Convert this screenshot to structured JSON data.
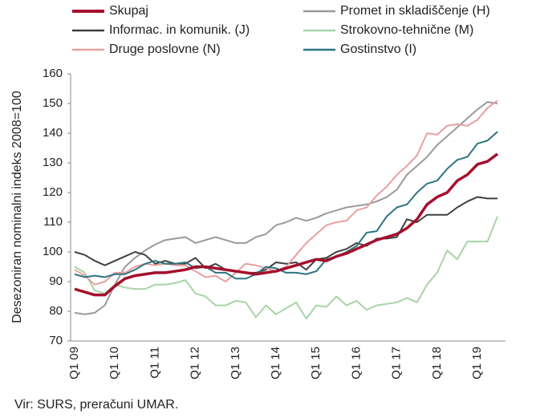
{
  "chart_data": {
    "type": "line",
    "y_label": "Desezoniran nominalni indeks 2008=100",
    "source": "Vir: SURS, preračuni UMAR.",
    "categories": [
      "Q1 09",
      null,
      null,
      null,
      "Q1 10",
      null,
      null,
      null,
      "Q1 11",
      null,
      null,
      null,
      "Q1 12",
      null,
      null,
      null,
      "Q1 13",
      null,
      null,
      null,
      "Q1 14",
      null,
      null,
      null,
      "Q1 15",
      null,
      null,
      null,
      "Q1 16",
      null,
      null,
      null,
      "Q1 17",
      null,
      null,
      null,
      "Q1 18",
      null,
      null,
      null,
      "Q1 19",
      null,
      null
    ],
    "ylim": [
      70,
      160
    ],
    "yticks": [
      70,
      80,
      90,
      100,
      110,
      120,
      130,
      140,
      150,
      160
    ],
    "series": [
      {
        "name": "Skupaj",
        "color": "#a50f2d",
        "values": [
          87.5,
          86.5,
          85.5,
          85.5,
          88.5,
          91,
          92,
          92.5,
          93,
          93,
          93.5,
          94,
          95,
          95,
          94.5,
          94,
          93.5,
          93,
          92.5,
          93,
          93.5,
          94.5,
          95.5,
          96.5,
          97.5,
          97,
          98.5,
          99.5,
          101,
          102.5,
          104,
          105,
          106,
          108,
          111,
          116,
          118.5,
          120,
          124,
          126,
          129.5,
          130.5,
          133
        ]
      },
      {
        "name": "Promet in skladiščenje (H)",
        "color": "#9a9a9a",
        "values": [
          79.5,
          79,
          79.5,
          82,
          89,
          95,
          98,
          100.5,
          102.5,
          104,
          104.5,
          105,
          103,
          104,
          105,
          104,
          103,
          103,
          105,
          106,
          109,
          110,
          111.5,
          110.5,
          111.5,
          113,
          114,
          115,
          115.5,
          116,
          117,
          118.5,
          121,
          126,
          129,
          132,
          136,
          139,
          142,
          145,
          148,
          150.5,
          150
        ]
      },
      {
        "name": "Informac. in komunik. (J)",
        "color": "#404040",
        "values": [
          100,
          99,
          97,
          95.5,
          97,
          98.5,
          100,
          99,
          96,
          97,
          96,
          96,
          98,
          94.5,
          96,
          94,
          93.5,
          93,
          93,
          94,
          96.5,
          96,
          96.5,
          94,
          97.5,
          98,
          100,
          101,
          103,
          102,
          104.5,
          104.5,
          105,
          111,
          110,
          112.5,
          112.5,
          112.5,
          115,
          117,
          118.5,
          118,
          118
        ]
      },
      {
        "name": "Strokovno-tehnične (M)",
        "color": "#a8d4a8",
        "values": [
          95,
          93,
          87,
          86,
          89,
          88,
          87.5,
          87.5,
          89,
          89,
          89.5,
          90.5,
          86,
          85,
          82,
          82,
          83.5,
          83,
          78,
          82,
          79,
          81,
          83,
          77.5,
          82,
          81.5,
          85,
          82,
          83.5,
          80.5,
          82,
          82.5,
          83,
          84.5,
          83,
          89,
          93,
          100.5,
          97.5,
          103.5,
          103.5,
          103.5,
          112
        ]
      },
      {
        "name": "Druge poslovne (N)",
        "color": "#e8a0a0",
        "values": [
          94,
          92,
          89,
          90,
          93,
          93,
          95,
          96,
          95.5,
          96,
          95.5,
          95.5,
          93.5,
          91.5,
          92,
          90,
          93,
          96,
          95.5,
          94.5,
          93.5,
          95,
          99,
          103,
          106,
          109,
          110,
          110.5,
          114,
          115,
          119,
          122,
          126,
          129,
          132.5,
          140,
          139.5,
          142.5,
          143,
          142.5,
          144.5,
          148.5,
          151
        ]
      },
      {
        "name": "Gostinstvo (I)",
        "color": "#2e7480",
        "values": [
          92.5,
          91.5,
          92,
          91.5,
          92.5,
          92.5,
          94,
          96,
          97,
          96,
          96,
          96.5,
          94.5,
          95,
          93,
          93,
          91,
          91,
          92.5,
          95,
          94.5,
          93,
          93,
          92.5,
          93.5,
          97.5,
          98.5,
          100,
          102,
          106.5,
          107,
          112,
          115,
          116,
          120,
          123,
          124,
          128,
          131,
          132,
          136.5,
          137.5,
          140.5
        ]
      }
    ]
  }
}
